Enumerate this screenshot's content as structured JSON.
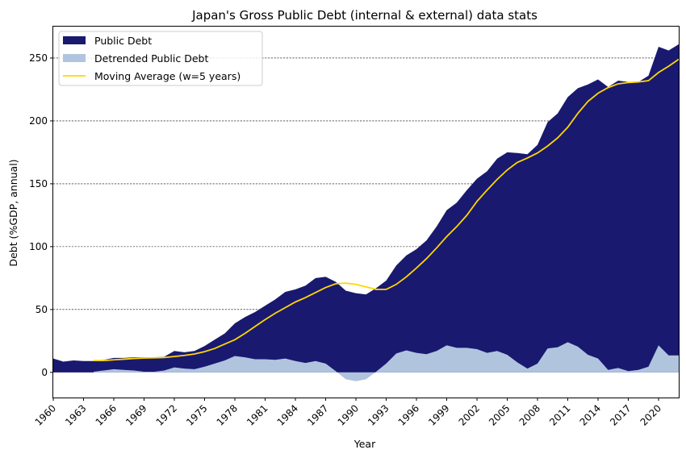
{
  "chart_data": {
    "type": "area",
    "title": "Japan's Gross Public Debt (internal & external) data stats",
    "xlabel": "Year",
    "ylabel": "Debt (%GDP, annual)",
    "xlim": [
      1960,
      2022
    ],
    "ylim": [
      -20,
      275
    ],
    "xticks": [
      1960,
      1963,
      1966,
      1969,
      1972,
      1975,
      1978,
      1981,
      1984,
      1987,
      1990,
      1993,
      1996,
      1999,
      2002,
      2005,
      2008,
      2011,
      2014,
      2017,
      2020
    ],
    "yticks": [
      0,
      50,
      100,
      150,
      200,
      250
    ],
    "grid": "horizontal dashed",
    "legend_position": "top-left",
    "colors": {
      "public_debt": "#191970",
      "detrended": "#b0c4de",
      "moving_average": "#ffd700"
    },
    "x": [
      1960,
      1961,
      1962,
      1963,
      1964,
      1965,
      1966,
      1967,
      1968,
      1969,
      1970,
      1971,
      1972,
      1973,
      1974,
      1975,
      1976,
      1977,
      1978,
      1979,
      1980,
      1981,
      1982,
      1983,
      1984,
      1985,
      1986,
      1987,
      1988,
      1989,
      1990,
      1991,
      1992,
      1993,
      1994,
      1995,
      1996,
      1997,
      1998,
      1999,
      2000,
      2001,
      2002,
      2003,
      2004,
      2005,
      2006,
      2007,
      2008,
      2009,
      2010,
      2011,
      2012,
      2013,
      2014,
      2015,
      2016,
      2017,
      2018,
      2019,
      2020,
      2021,
      2022
    ],
    "series": [
      {
        "name": "Public Debt",
        "kind": "area",
        "values": [
          11,
          8.5,
          9.5,
          9,
          9,
          10,
          11.5,
          11.5,
          12,
          12,
          12,
          12.5,
          17,
          16,
          17,
          21,
          26,
          31,
          39,
          44,
          48,
          53,
          58,
          64,
          66,
          69,
          75,
          76,
          72,
          65,
          63,
          62,
          67,
          73,
          85,
          93,
          98,
          105,
          116,
          129,
          135,
          145,
          154,
          160,
          170,
          175,
          174.5,
          173.5,
          181,
          199,
          206,
          219,
          226,
          229,
          233,
          227,
          232,
          231,
          231,
          236,
          259,
          256,
          261
        ]
      },
      {
        "name": "Detrended Public Debt",
        "kind": "area",
        "values": [
          null,
          null,
          null,
          null,
          0.5,
          1.5,
          2.5,
          2,
          1.5,
          0.5,
          0.5,
          1.5,
          4,
          3,
          2.5,
          4.5,
          7,
          9.5,
          13,
          12,
          10.5,
          10.5,
          10,
          11,
          9,
          7.5,
          9,
          7,
          1,
          -5.5,
          -7,
          -5.5,
          0.5,
          7,
          15,
          17.5,
          15.5,
          14.5,
          17,
          21.5,
          19.5,
          19.5,
          18.5,
          15.5,
          17,
          14,
          8,
          3,
          7,
          19,
          20,
          24,
          20.5,
          14,
          11,
          2,
          3.5,
          1,
          2,
          4.5,
          21.5,
          13.5,
          13.5
        ]
      },
      {
        "name": "Moving Average (w=5 years)",
        "kind": "line",
        "values": [
          null,
          null,
          null,
          null,
          9.4,
          9.4,
          10,
          10.5,
          11,
          11.4,
          11.6,
          11.8,
          12.6,
          13.5,
          14.6,
          16.5,
          19,
          22.5,
          26,
          31,
          36.5,
          42,
          47,
          51.5,
          56,
          59.5,
          63.5,
          67.5,
          70.5,
          71,
          70,
          68,
          66,
          66,
          70,
          76,
          83,
          90.5,
          99,
          108,
          116,
          125,
          136,
          145,
          153.5,
          161,
          167,
          170.5,
          174.5,
          180,
          186.5,
          195,
          206,
          215.5,
          222,
          226.5,
          229.5,
          230.5,
          231,
          232,
          238.5,
          243.5,
          249
        ]
      }
    ]
  }
}
